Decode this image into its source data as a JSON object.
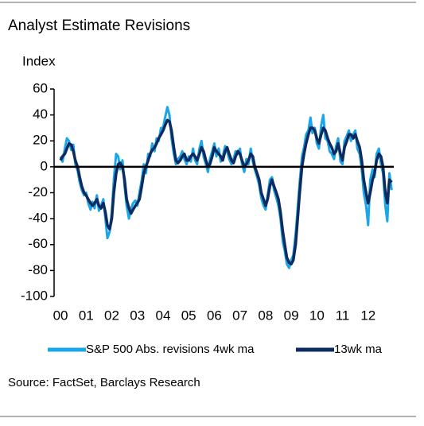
{
  "chart_data": {
    "type": "line",
    "title": "Analyst Estimate Revisions",
    "y_axis_label": "Index",
    "source": "Source: FactSet, Barclays  Research",
    "x": [
      2000.0,
      2000.08,
      2000.17,
      2000.25,
      2000.33,
      2000.42,
      2000.5,
      2000.58,
      2000.67,
      2000.75,
      2000.83,
      2000.92,
      2001.0,
      2001.08,
      2001.17,
      2001.25,
      2001.33,
      2001.42,
      2001.5,
      2001.58,
      2001.67,
      2001.75,
      2001.83,
      2001.92,
      2002.0,
      2002.08,
      2002.17,
      2002.25,
      2002.33,
      2002.42,
      2002.5,
      2002.58,
      2002.67,
      2002.75,
      2002.83,
      2002.92,
      2003.0,
      2003.08,
      2003.17,
      2003.25,
      2003.33,
      2003.42,
      2003.5,
      2003.58,
      2003.67,
      2003.75,
      2003.83,
      2003.92,
      2004.0,
      2004.08,
      2004.17,
      2004.25,
      2004.33,
      2004.42,
      2004.5,
      2004.58,
      2004.67,
      2004.75,
      2004.83,
      2004.92,
      2005.0,
      2005.08,
      2005.17,
      2005.25,
      2005.33,
      2005.42,
      2005.5,
      2005.58,
      2005.67,
      2005.75,
      2005.83,
      2005.92,
      2006.0,
      2006.08,
      2006.17,
      2006.25,
      2006.33,
      2006.42,
      2006.5,
      2006.58,
      2006.67,
      2006.75,
      2006.83,
      2006.92,
      2007.0,
      2007.08,
      2007.17,
      2007.25,
      2007.33,
      2007.42,
      2007.5,
      2007.58,
      2007.67,
      2007.75,
      2007.83,
      2007.92,
      2008.0,
      2008.08,
      2008.17,
      2008.25,
      2008.33,
      2008.42,
      2008.5,
      2008.58,
      2008.67,
      2008.75,
      2008.83,
      2008.92,
      2009.0,
      2009.08,
      2009.17,
      2009.25,
      2009.33,
      2009.42,
      2009.5,
      2009.58,
      2009.67,
      2009.75,
      2009.83,
      2009.92,
      2010.0,
      2010.08,
      2010.17,
      2010.25,
      2010.33,
      2010.42,
      2010.5,
      2010.58,
      2010.67,
      2010.75,
      2010.83,
      2010.92,
      2011.0,
      2011.08,
      2011.17,
      2011.25,
      2011.33,
      2011.42,
      2011.5,
      2011.58,
      2011.67,
      2011.75,
      2011.83,
      2011.92,
      2012.0,
      2012.08,
      2012.17,
      2012.25,
      2012.33,
      2012.42,
      2012.5,
      2012.58,
      2012.67,
      2012.75,
      2012.83,
      2012.92
    ],
    "series": [
      {
        "name": "S&P 500 Abs. revisions 4wk ma",
        "color": "#1ca6ea",
        "values": [
          8,
          4,
          14,
          22,
          20,
          13,
          17,
          2,
          -3,
          -12,
          -18,
          -22,
          -20,
          -28,
          -33,
          -27,
          -32,
          -22,
          -34,
          -30,
          -25,
          -40,
          -55,
          -50,
          -35,
          -10,
          10,
          8,
          -2,
          5,
          -15,
          -30,
          -40,
          -32,
          -28,
          -26,
          -30,
          -20,
          -10,
          2,
          -5,
          10,
          8,
          18,
          12,
          22,
          20,
          30,
          30,
          38,
          46,
          40,
          22,
          10,
          2,
          6,
          8,
          12,
          6,
          2,
          8,
          4,
          14,
          5,
          2,
          14,
          20,
          8,
          2,
          -4,
          6,
          12,
          18,
          8,
          14,
          4,
          8,
          16,
          12,
          6,
          2,
          6,
          12,
          10,
          14,
          2,
          -4,
          6,
          2,
          14,
          4,
          -2,
          -8,
          -14,
          -24,
          -30,
          -33,
          -22,
          -10,
          -8,
          -18,
          -24,
          -30,
          -40,
          -58,
          -65,
          -75,
          -78,
          -72,
          -68,
          -52,
          -32,
          -12,
          8,
          15,
          25,
          28,
          38,
          26,
          30,
          18,
          14,
          32,
          40,
          22,
          20,
          12,
          10,
          6,
          16,
          22,
          4,
          2,
          20,
          24,
          28,
          20,
          25,
          28,
          14,
          10,
          -2,
          -20,
          -30,
          -45,
          -10,
          -2,
          -8,
          10,
          14,
          2,
          -5,
          -30,
          -42,
          -5,
          -18
        ]
      },
      {
        "name": "13wk ma",
        "color": "#0d2b5f",
        "values": [
          5,
          8,
          10,
          14,
          18,
          17,
          12,
          5,
          0,
          -8,
          -15,
          -20,
          -22,
          -25,
          -28,
          -30,
          -28,
          -25,
          -30,
          -32,
          -28,
          -35,
          -45,
          -48,
          -40,
          -20,
          -5,
          2,
          3,
          0,
          -10,
          -25,
          -32,
          -36,
          -33,
          -30,
          -28,
          -25,
          -15,
          -5,
          0,
          5,
          10,
          13,
          15,
          18,
          22,
          25,
          28,
          32,
          36,
          35,
          28,
          15,
          5,
          3,
          5,
          8,
          10,
          5,
          5,
          8,
          10,
          8,
          5,
          10,
          15,
          12,
          5,
          0,
          2,
          8,
          15,
          12,
          10,
          8,
          5,
          12,
          15,
          10,
          5,
          3,
          8,
          12,
          10,
          5,
          0,
          2,
          5,
          10,
          8,
          0,
          -5,
          -10,
          -20,
          -25,
          -30,
          -25,
          -15,
          -10,
          -15,
          -20,
          -25,
          -35,
          -50,
          -60,
          -70,
          -74,
          -75,
          -72,
          -60,
          -40,
          -20,
          0,
          10,
          18,
          25,
          30,
          30,
          28,
          22,
          18,
          25,
          30,
          28,
          22,
          18,
          15,
          10,
          12,
          18,
          10,
          5,
          15,
          20,
          25,
          25,
          22,
          25,
          20,
          15,
          5,
          -10,
          -20,
          -28,
          -20,
          -10,
          -5,
          5,
          10,
          8,
          0,
          -20,
          -28,
          -10,
          -12
        ]
      }
    ],
    "xlim": [
      1999.75,
      2013.0
    ],
    "xticks": [
      {
        "value": 2000,
        "label": "00"
      },
      {
        "value": 2001,
        "label": "01"
      },
      {
        "value": 2002,
        "label": "02"
      },
      {
        "value": 2003,
        "label": "03"
      },
      {
        "value": 2004,
        "label": "04"
      },
      {
        "value": 2005,
        "label": "05"
      },
      {
        "value": 2006,
        "label": "06"
      },
      {
        "value": 2007,
        "label": "07"
      },
      {
        "value": 2008,
        "label": "08"
      },
      {
        "value": 2009,
        "label": "09"
      },
      {
        "value": 2010,
        "label": "10"
      },
      {
        "value": 2011,
        "label": "11"
      },
      {
        "value": 2012,
        "label": "12"
      }
    ],
    "ylim": [
      -100,
      60
    ],
    "yticks": [
      60,
      40,
      20,
      0,
      -20,
      -40,
      -60,
      -80,
      -100
    ]
  }
}
